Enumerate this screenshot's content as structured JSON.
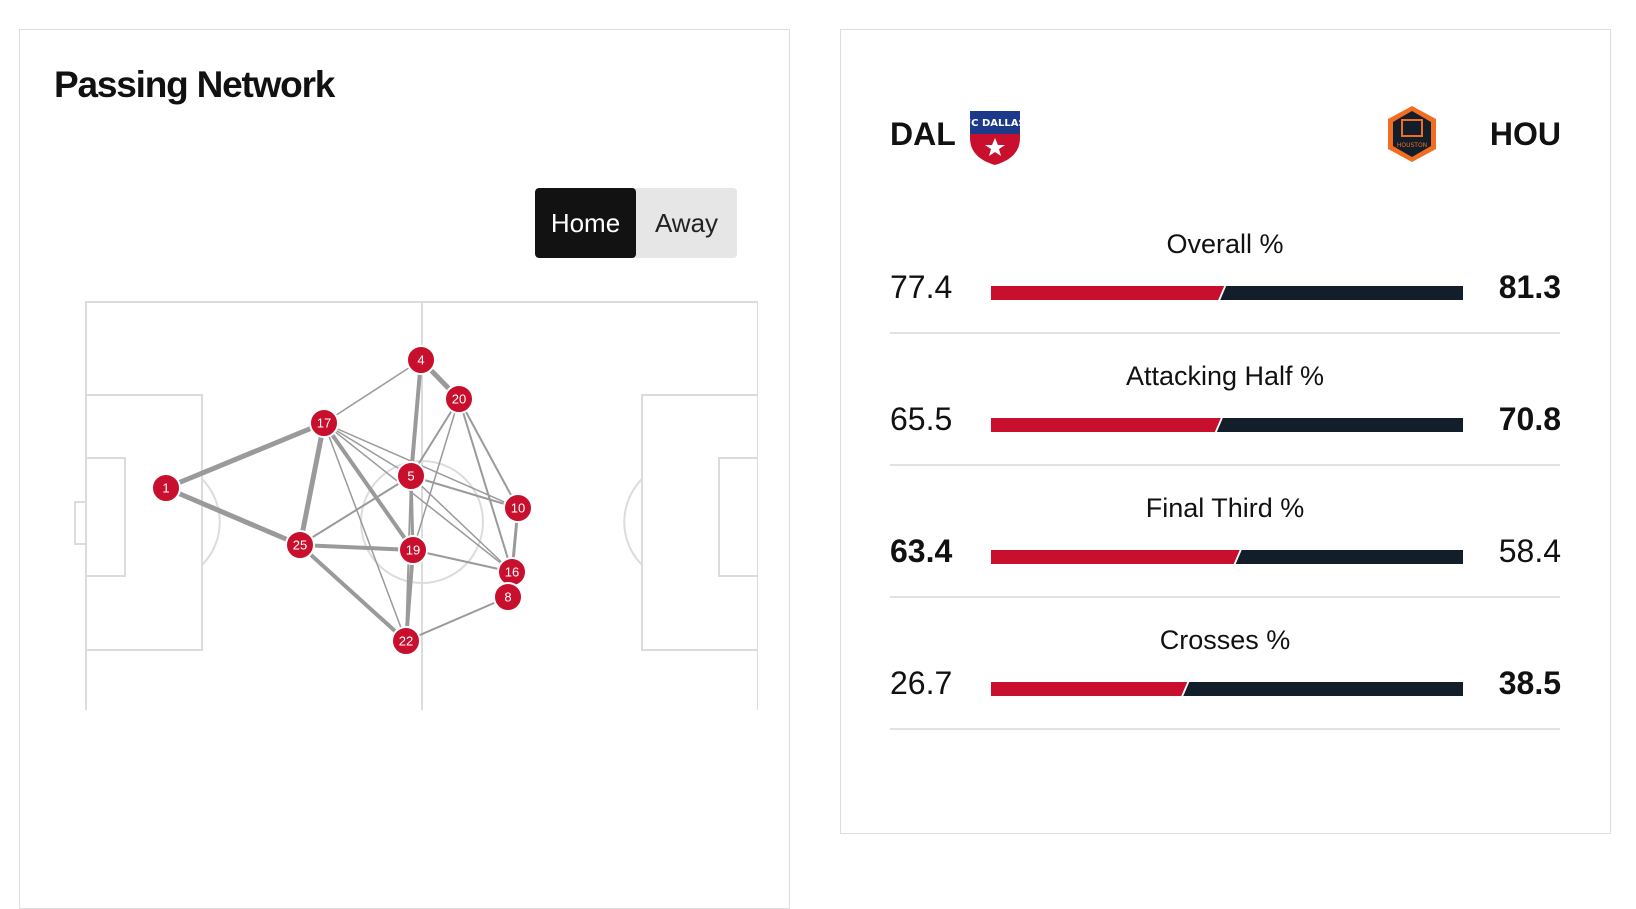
{
  "passing_network": {
    "title": "Passing Network",
    "toggle": {
      "home_label": "Home",
      "away_label": "Away",
      "selected": "Home"
    },
    "node_color": "#c8102e",
    "edge_color": "#9a9a9a",
    "players": [
      "1",
      "4",
      "17",
      "20",
      "5",
      "10",
      "25",
      "19",
      "16",
      "8",
      "22"
    ]
  },
  "comparison": {
    "home": {
      "abbr": "DAL",
      "color": "#c8102e",
      "logo_lettering": "FC DALLAS"
    },
    "away": {
      "abbr": "HOU",
      "color": "#121f2b",
      "logo_lettering": "HOUSTON DYNAMO FC"
    },
    "stats": [
      {
        "label": "Overall %",
        "home": "77.4",
        "away": "81.3",
        "leader": "away"
      },
      {
        "label": "Attacking Half %",
        "home": "65.5",
        "away": "70.8",
        "leader": "away"
      },
      {
        "label": "Final Third %",
        "home": "63.4",
        "away": "58.4",
        "leader": "home"
      },
      {
        "label": "Crosses %",
        "home": "26.7",
        "away": "38.5",
        "leader": "away"
      }
    ]
  }
}
